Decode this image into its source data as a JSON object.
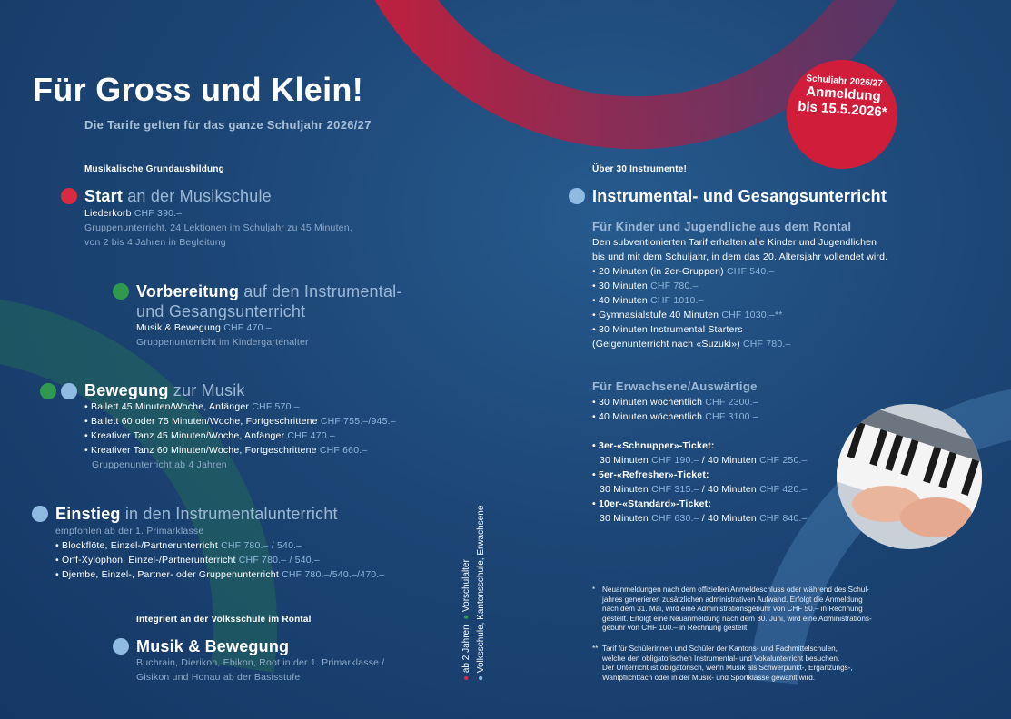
{
  "colors": {
    "background": "#1c4675",
    "red": "#d92b3f",
    "green": "#2f9a4f",
    "blue": "#8fbbe3",
    "price": "#8fb7dc"
  },
  "title": "Für Gross und Klein!",
  "subtitle": "Die Tarife gelten für das ganze Schuljahr 2026/27",
  "badge": {
    "line1": "Schuljahr 2026/27",
    "line2": "Anmeldung",
    "line3": "bis 15.5.2026*"
  },
  "left": {
    "kicker": "Musikalische Grundausbildung",
    "start": {
      "bold": "Start",
      "rest": " an der Musikschule",
      "lines": [
        {
          "text": "Liederkorb ",
          "price": "CHF 390.–"
        }
      ],
      "notes": [
        "Gruppenunterricht, 24 Lektionen im Schuljahr zu 45 Minuten,",
        "von 2 bis 4 Jahren in Begleitung"
      ]
    },
    "vorbereitung": {
      "bold": "Vorbereitung",
      "rest": " auf den Instrumental-",
      "rest2": "und Gesangsunterricht",
      "lines": [
        {
          "text": "Musik & Bewegung ",
          "price": "CHF 470.–"
        }
      ],
      "notes": [
        "Gruppenunterricht im Kindergartenalter"
      ]
    },
    "bewegung": {
      "bold": "Bewegung",
      "rest": " zur Musik",
      "lines": [
        {
          "text": "• Ballett 45 Minuten/Woche, Anfänger ",
          "price": "CHF 570.–"
        },
        {
          "text": "• Ballett 60 oder 75 Minuten/Woche, Fortgeschrittene ",
          "price": "CHF 755.–/945.–"
        },
        {
          "text": "• Kreativer Tanz 45 Minuten/Woche, Anfänger ",
          "price": "CHF 470.–"
        },
        {
          "text": "• Kreativer Tanz 60 Minuten/Woche, Fortgeschrittene ",
          "price": "CHF 660.–"
        }
      ],
      "notes": [
        "Gruppenunterricht ab 4 Jahren"
      ]
    },
    "einstieg": {
      "bold": "Einstieg",
      "rest": " in den Instrumentalunterricht",
      "notes": [
        "empfohlen ab der 1. Primarklasse"
      ],
      "lines": [
        {
          "text": "• Blockflöte, Einzel-/Partnerunterricht ",
          "price": "CHF 780.– / 540.–"
        },
        {
          "text": "• Orff-Xylophon, Einzel-/Partnerunterricht ",
          "price": "CHF 780.– / 540.–"
        },
        {
          "text": "• Djembe, Einzel-, Partner- oder Gruppenunterricht ",
          "price": "CHF 780.–/540.–/470.–"
        }
      ]
    },
    "kicker2": "Integriert an der Volksschule im Rontal",
    "musik": {
      "bold": "Musik & Bewegung",
      "notes": [
        "Buchrain, Dierikon, Ebikon, Root in der 1. Primarklasse /",
        "Gisikon und Honau ab der Basisstufe"
      ]
    }
  },
  "legend": {
    "col1": [
      "ab 2 Jahren",
      "Vorschulalter"
    ],
    "col2": "Volksschule, Kantonsschule, Erwachsene"
  },
  "right": {
    "kicker": "Über 30 Instrumente!",
    "heading": "Instrumental- und Gesangsunterricht",
    "kids": {
      "title": "Für Kinder und Jugendliche aus dem Rontal",
      "intro": [
        "Den subventionierten Tarif erhalten alle Kinder und Jugendlichen",
        "bis und mit dem Schuljahr, in dem das 20. Altersjahr vollendet wird."
      ],
      "lines": [
        {
          "text": "• 20 Minuten (in 2er-Gruppen) ",
          "price": "CHF 540.–"
        },
        {
          "text": "• 30 Minuten ",
          "price": "CHF 780.–"
        },
        {
          "text": "• 40 Minuten ",
          "price": "CHF 1010.–"
        },
        {
          "text": "• Gymnasialstufe 40 Minuten ",
          "price": "CHF 1030.–**"
        },
        {
          "text": "• 30 Minuten Instrumental Starters",
          "price": ""
        },
        {
          "text": "   (Geigenunterricht nach «Suzuki») ",
          "price": "CHF 780.–"
        }
      ]
    },
    "adults": {
      "title": "Für Erwachsene/Auswärtige",
      "lines": [
        {
          "text": "• 30 Minuten wöchentlich ",
          "price": "CHF 2300.–"
        },
        {
          "text": "• 40 Minuten wöchentlich ",
          "price": "CHF 3100.–"
        }
      ]
    },
    "tickets": [
      {
        "name": "• 3er-«Schnupper»-Ticket:",
        "a": "30 Minuten ",
        "pa": "CHF 190.–",
        "b": " / 40 Minuten ",
        "pb": "CHF 250.–"
      },
      {
        "name": "• 5er-«Refresher»-Ticket:",
        "a": "30 Minuten ",
        "pa": "CHF 315.–",
        "b": " / 40 Minuten ",
        "pb": "CHF 420.–"
      },
      {
        "name": "• 10er-«Standard»-Ticket:",
        "a": "30 Minuten ",
        "pa": "CHF 630.–",
        "b": " / 40 Minuten ",
        "pb": "CHF 840.–"
      }
    ],
    "footnote1": {
      "mark": "*",
      "lines": [
        "Neuanmeldungen nach dem offiziellen Anmeldeschluss oder während des Schul-",
        "jahres generieren zusätzlichen administrativen Aufwand. Erfolgt die Anmeldung",
        "nach dem 31. Mai, wird eine Administrationsgebühr von CHF 50.– in Rechnung",
        "gestellt. Erfolgt eine Neuanmeldung nach dem 30. Juni, wird eine Administrations-",
        "gebühr von CHF 100.– in Rechnung gestellt."
      ]
    },
    "footnote2": {
      "mark": "**",
      "lines": [
        "Tarif für Schülerinnen und Schüler der Kantons- und Fachmittelschulen,",
        "welche den obligatorischen Instrumental- und Vokalunterricht besuchen.",
        "Der Unterricht ist obligatorisch, wenn Musik als Schwerpunkt-, Ergänzungs-,",
        "Wahlpflichtfach oder in der Musik- und Sportklasse gewählt wird."
      ]
    }
  }
}
